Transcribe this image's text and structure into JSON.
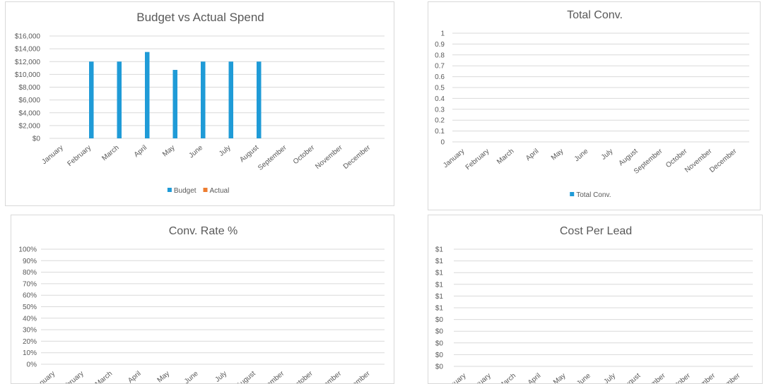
{
  "charts": [
    {
      "type": "bar",
      "title": "Budget vs Actual Spend",
      "categories": [
        "January",
        "February",
        "March",
        "April",
        "May",
        "June",
        "July",
        "August",
        "September",
        "October",
        "November",
        "December"
      ],
      "series": [
        {
          "name": "Budget",
          "color": "#1f9bd7",
          "values": [
            0,
            12000,
            12000,
            13500,
            10700,
            12000,
            12000,
            12000,
            0,
            0,
            0,
            0
          ]
        },
        {
          "name": "Actual",
          "color": "#ed7d31",
          "values": [
            0,
            0,
            0,
            0,
            0,
            0,
            0,
            0,
            0,
            0,
            0,
            0
          ]
        }
      ],
      "ylim": [
        0,
        16000
      ],
      "yticks": [
        "$16,000",
        "$14,000",
        "$12,000",
        "$10,000",
        "$8,000",
        "$6,000",
        "$4,000",
        "$2,000",
        "$0"
      ],
      "legend": "bottom"
    },
    {
      "type": "bar",
      "title": "Total Conv.",
      "categories": [
        "January",
        "February",
        "March",
        "April",
        "May",
        "June",
        "July",
        "August",
        "September",
        "October",
        "November",
        "December"
      ],
      "series": [
        {
          "name": "Total Conv.",
          "color": "#1f9bd7",
          "values": [
            0,
            0,
            0,
            0,
            0,
            0,
            0,
            0,
            0,
            0,
            0,
            0
          ]
        }
      ],
      "ylim": [
        0,
        1
      ],
      "yticks": [
        "1",
        "0.9",
        "0.8",
        "0.7",
        "0.6",
        "0.5",
        "0.4",
        "0.3",
        "0.2",
        "0.1",
        "0"
      ],
      "legend": "bottom"
    },
    {
      "type": "line",
      "title": "Conv. Rate %",
      "categories": [
        "January",
        "February",
        "March",
        "April",
        "May",
        "June",
        "July",
        "August",
        "September",
        "October",
        "November",
        "December"
      ],
      "series": [],
      "ylim": [
        0,
        1
      ],
      "yticks": [
        "100%",
        "90%",
        "80%",
        "70%",
        "60%",
        "50%",
        "40%",
        "30%",
        "20%",
        "10%",
        "0%"
      ],
      "legend": "none"
    },
    {
      "type": "line",
      "title": "Cost Per Lead",
      "categories": [
        "January",
        "February",
        "March",
        "April",
        "May",
        "June",
        "July",
        "August",
        "September",
        "October",
        "November",
        "December"
      ],
      "series": [],
      "ylim": [
        0,
        1
      ],
      "yticks": [
        "$1",
        "$1",
        "$1",
        "$1",
        "$1",
        "$1",
        "$0",
        "$0",
        "$0",
        "$0",
        "$0"
      ],
      "legend": "none"
    }
  ],
  "chart_data": [
    {
      "type": "bar",
      "title": "Budget vs Actual Spend",
      "categories": [
        "January",
        "February",
        "March",
        "April",
        "May",
        "June",
        "July",
        "August",
        "September",
        "October",
        "November",
        "December"
      ],
      "series": [
        {
          "name": "Budget",
          "values": [
            0,
            12000,
            12000,
            13500,
            10700,
            12000,
            12000,
            12000,
            0,
            0,
            0,
            0
          ]
        },
        {
          "name": "Actual",
          "values": [
            0,
            0,
            0,
            0,
            0,
            0,
            0,
            0,
            0,
            0,
            0,
            0
          ]
        }
      ],
      "ylim": [
        0,
        16000
      ],
      "grid": true,
      "legend": "bottom"
    },
    {
      "type": "bar",
      "title": "Total Conv.",
      "categories": [
        "January",
        "February",
        "March",
        "April",
        "May",
        "June",
        "July",
        "August",
        "September",
        "October",
        "November",
        "December"
      ],
      "series": [
        {
          "name": "Total Conv.",
          "values": [
            0,
            0,
            0,
            0,
            0,
            0,
            0,
            0,
            0,
            0,
            0,
            0
          ]
        }
      ],
      "ylim": [
        0,
        1
      ],
      "grid": true,
      "legend": "bottom"
    },
    {
      "type": "line",
      "title": "Conv. Rate %",
      "categories": [
        "January",
        "February",
        "March",
        "April",
        "May",
        "June",
        "July",
        "August",
        "September",
        "October",
        "November",
        "December"
      ],
      "series": [],
      "ylim": [
        0,
        1
      ],
      "grid": true
    },
    {
      "type": "line",
      "title": "Cost Per Lead",
      "categories": [
        "January",
        "February",
        "March",
        "April",
        "May",
        "June",
        "July",
        "August",
        "September",
        "October",
        "November",
        "December"
      ],
      "series": [],
      "ylim": [
        0,
        1
      ],
      "grid": true
    }
  ]
}
